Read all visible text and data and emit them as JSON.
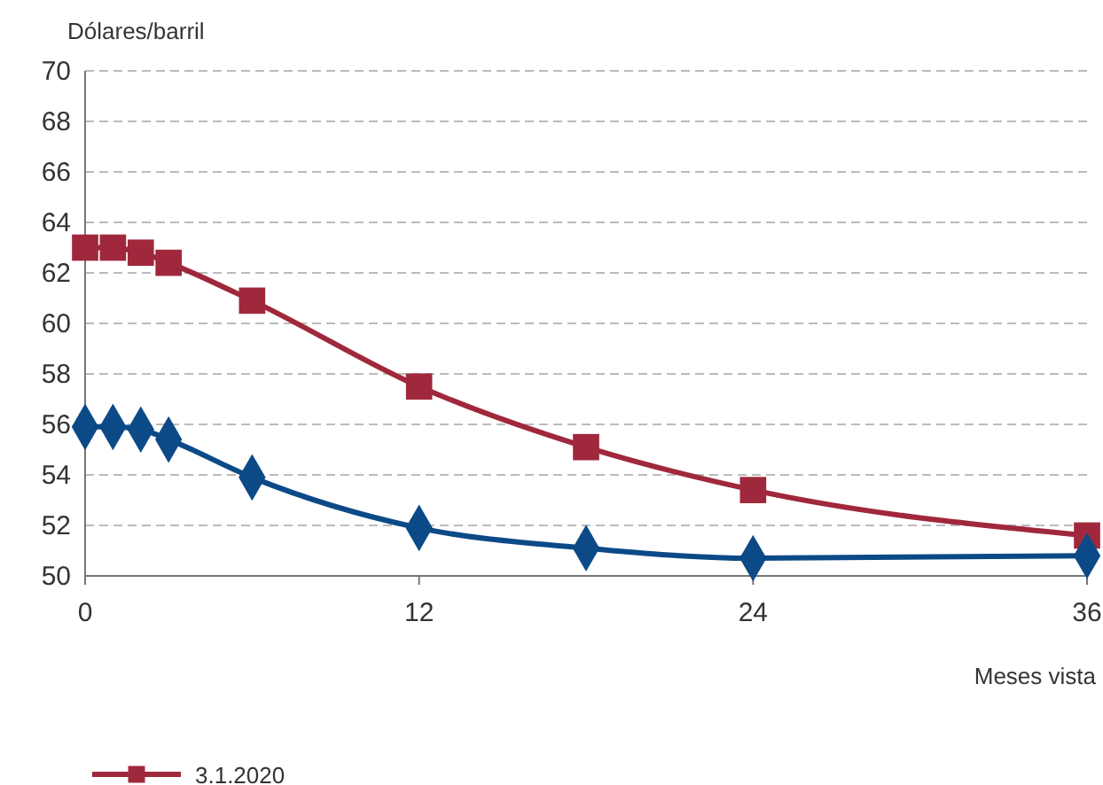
{
  "chart_data": {
    "type": "line",
    "ylabel": "Dólares/barril",
    "xlabel": "Meses vista",
    "x": [
      0,
      1,
      2,
      3,
      6,
      12,
      18,
      24,
      36
    ],
    "xlim": [
      0,
      36
    ],
    "xticks": [
      0,
      12,
      24,
      36
    ],
    "ylim": [
      50,
      70
    ],
    "yticks": [
      50,
      52,
      54,
      56,
      58,
      60,
      62,
      64,
      66,
      68,
      70
    ],
    "grid": "y",
    "legend": "bottom",
    "series": [
      {
        "name": "3.1.2020",
        "color": "#a0283c",
        "marker": "square",
        "values": [
          63.0,
          63.0,
          62.8,
          62.4,
          60.9,
          57.5,
          55.1,
          53.4,
          51.6
        ]
      },
      {
        "color": "#0c4a87",
        "marker": "diamond",
        "values": [
          55.9,
          55.9,
          55.8,
          55.4,
          53.9,
          51.9,
          51.1,
          50.7,
          50.8
        ]
      }
    ]
  }
}
